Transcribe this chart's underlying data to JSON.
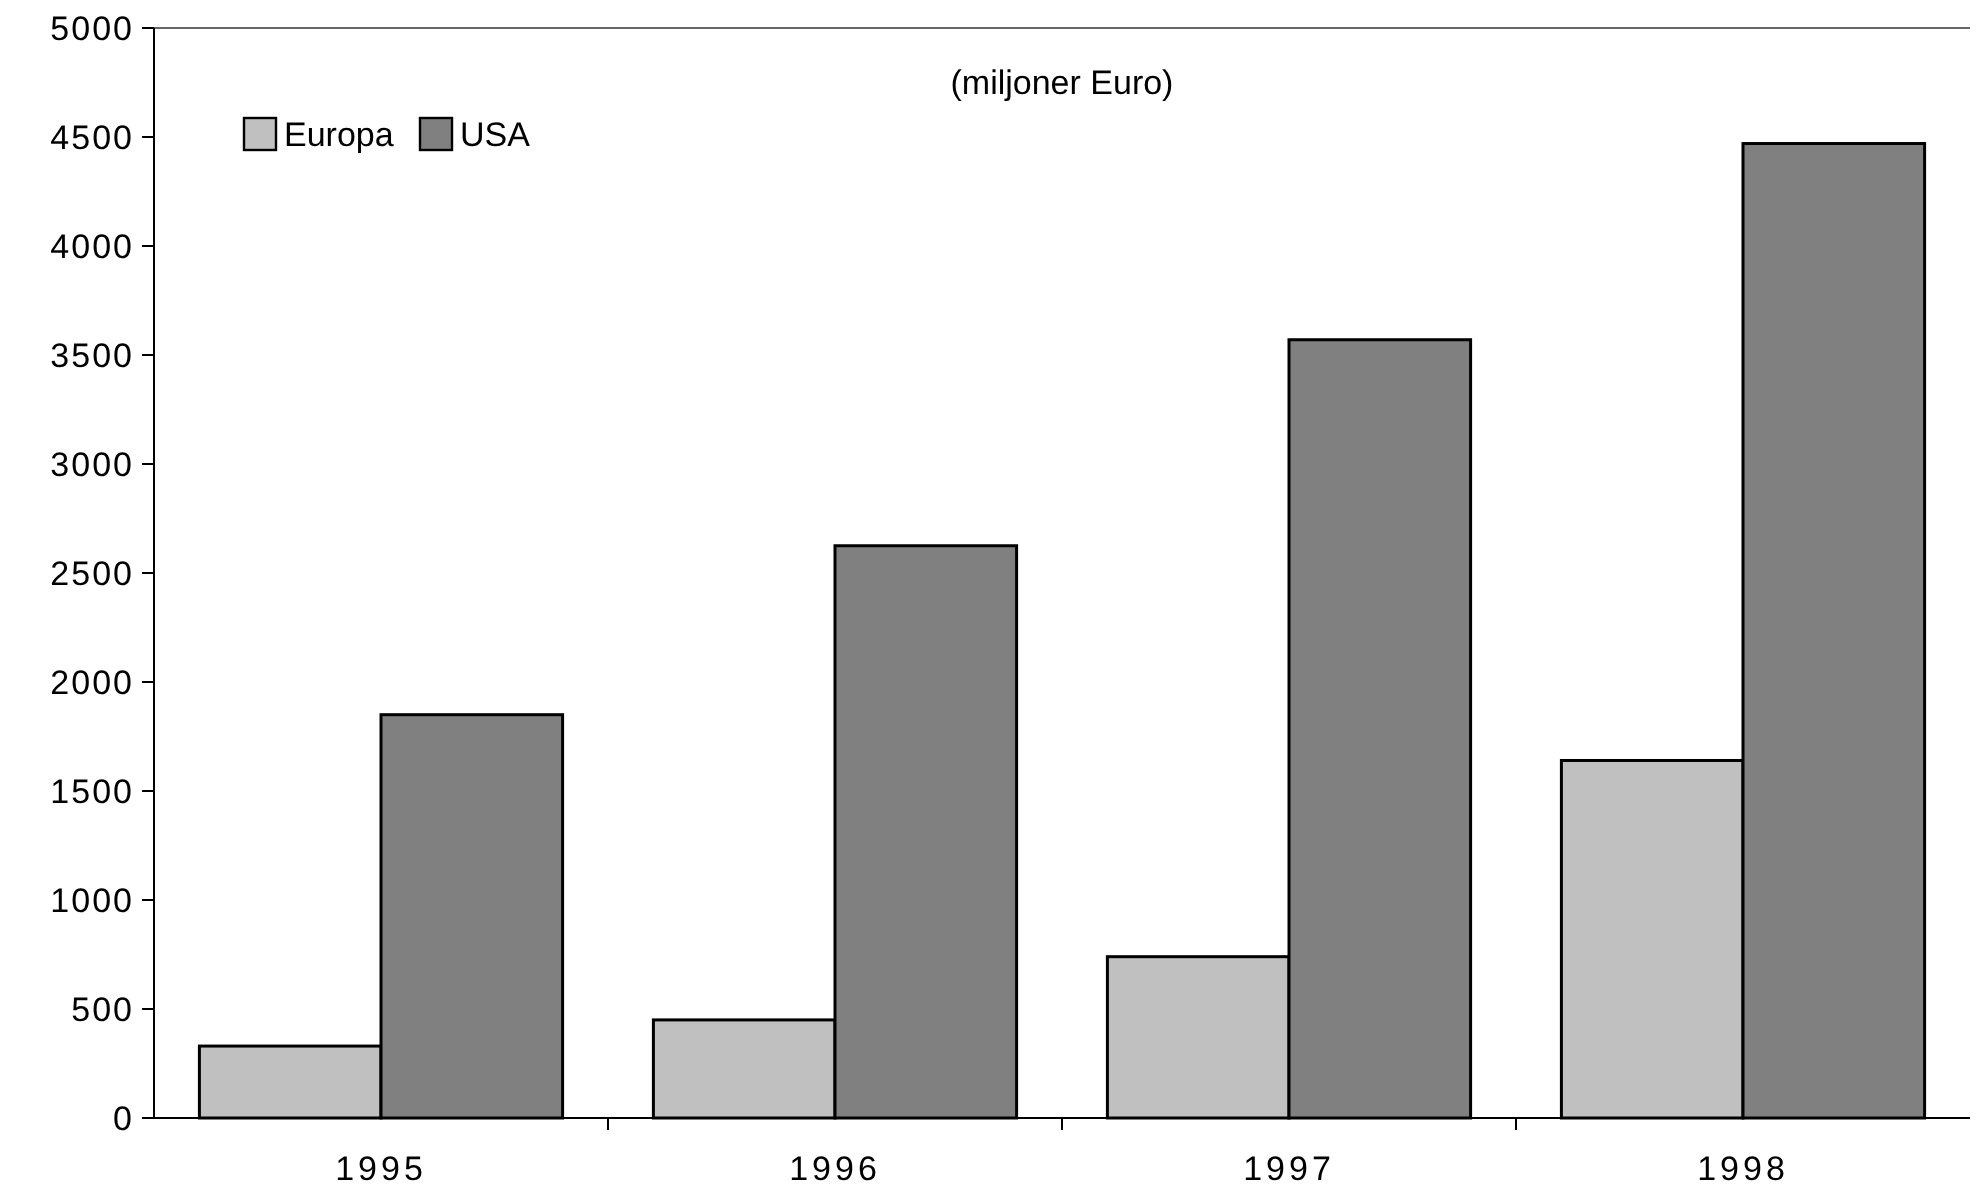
{
  "chart_data": {
    "type": "bar",
    "title": "(miljoner Euro)",
    "categories": [
      "1995",
      "1996",
      "1997",
      "1998"
    ],
    "series": [
      {
        "name": "Europa",
        "color": "#c0c0c0",
        "values": [
          330,
          450,
          740,
          1640
        ]
      },
      {
        "name": "USA",
        "color": "#808080",
        "values": [
          1850,
          2625,
          3570,
          4470
        ]
      }
    ],
    "ylim": [
      0,
      5000
    ],
    "yticks": [
      0,
      500,
      1000,
      1500,
      2000,
      2500,
      3000,
      3500,
      4000,
      4500,
      5000
    ],
    "legend": "top left"
  }
}
